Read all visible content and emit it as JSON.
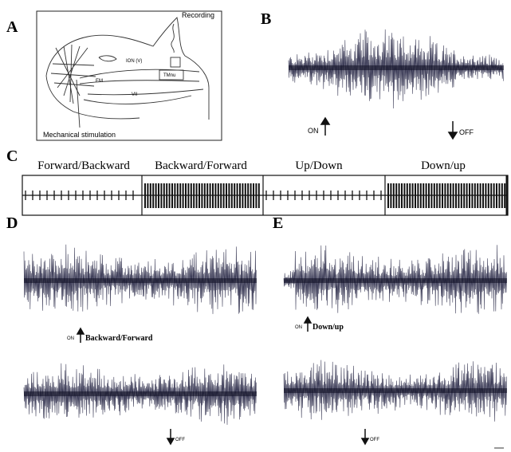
{
  "panels": {
    "a": {
      "label": "A",
      "recording": "Recording",
      "tmnu": "TMnu",
      "ion": "ION (V)",
      "em": "EM",
      "vii": "VII",
      "stimulation": "Mechanical stimulation"
    },
    "b": {
      "label": "B",
      "on": "ON",
      "off": "OFF"
    },
    "c": {
      "label": "C",
      "conditions": [
        "Forward/Backward",
        "Backward/Forward",
        "Up/Down",
        "Down/up"
      ]
    },
    "d": {
      "label": "D",
      "on": "ON",
      "stimulus": "Backward/Forward",
      "off": "OFF"
    },
    "e": {
      "label": "E",
      "on": "ON",
      "stimulus": "Down/up",
      "off": "OFF"
    }
  }
}
